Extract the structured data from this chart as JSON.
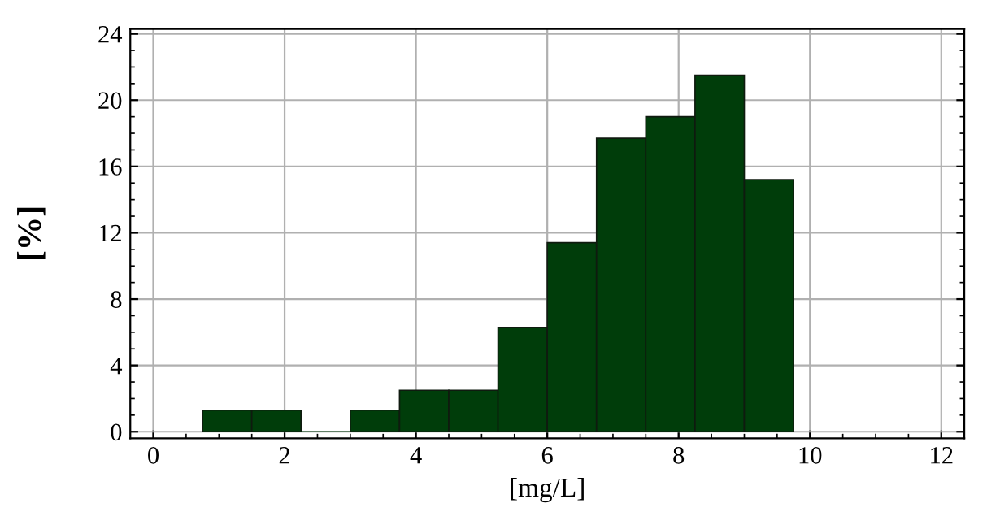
{
  "chart_data": {
    "type": "histogram",
    "xlabel": "[mg/L]",
    "ylabel": "[%]",
    "bins": [
      0.75,
      1.5,
      2.25,
      3.0,
      3.75,
      4.5,
      5.25,
      6.0,
      6.75,
      7.5,
      8.25,
      9.0,
      9.75
    ],
    "values": [
      1.3,
      1.3,
      0,
      1.3,
      2.5,
      2.5,
      6.3,
      11.4,
      17.7,
      19.0,
      21.5,
      15.2
    ],
    "color": "#003d0a",
    "xlim": [
      -0.35,
      12.35
    ],
    "xticks": [
      0,
      2,
      4,
      6,
      8,
      10,
      12
    ],
    "ylim": [
      -0.4,
      24.3
    ],
    "yticks": [
      0,
      4,
      8,
      12,
      16,
      20,
      24
    ],
    "grid": true
  }
}
